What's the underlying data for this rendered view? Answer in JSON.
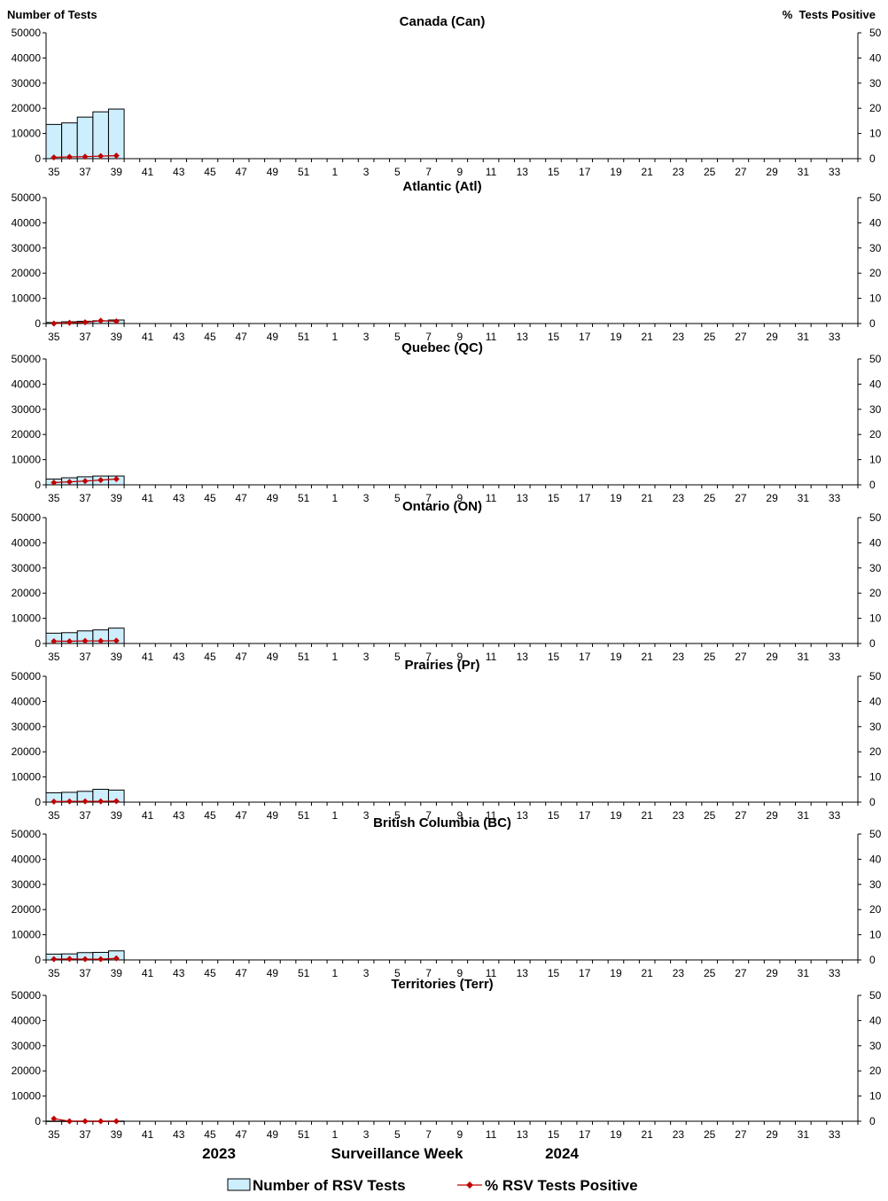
{
  "labels": {
    "left_axis_title": "Number of Tests",
    "right_axis_title": "%  Tests Positive",
    "year_left": "2023",
    "x_axis_title": "Surveillance Week",
    "year_right": "2024"
  },
  "legend": {
    "bars": "Number of RSV Tests",
    "line": "% RSV Tests Positive"
  },
  "colors": {
    "bar_fill": "#cdeefd",
    "bar_stroke": "#000000",
    "line": "#c00000",
    "marker": "#c00000"
  },
  "chart_data": [
    {
      "type": "bar",
      "title": "Canada (Can)",
      "x_tick_labels": [
        "35",
        "37",
        "39",
        "41",
        "43",
        "45",
        "47",
        "49",
        "51",
        "1",
        "3",
        "5",
        "7",
        "9",
        "11",
        "13",
        "15",
        "17",
        "19",
        "21",
        "23",
        "25",
        "27",
        "29",
        "31",
        "33"
      ],
      "categories": [
        "35",
        "36",
        "37",
        "38",
        "39"
      ],
      "series": [
        {
          "name": "Number of RSV Tests",
          "axis": "left",
          "type": "bar",
          "values": [
            13600,
            14200,
            16500,
            18600,
            19700
          ]
        },
        {
          "name": "% RSV Tests Positive",
          "axis": "right",
          "type": "line",
          "values": [
            0.5,
            0.7,
            0.8,
            1.0,
            1.2
          ]
        }
      ],
      "ylim_left": [
        0,
        50000
      ],
      "y_ticks_left": [
        0,
        10000,
        20000,
        30000,
        40000,
        50000
      ],
      "ylim_right": [
        0,
        50
      ],
      "y_ticks_right": [
        0,
        10,
        20,
        30,
        40,
        50
      ]
    },
    {
      "type": "bar",
      "title": "Atlantic (Atl)",
      "x_tick_labels": [
        "35",
        "37",
        "39",
        "41",
        "43",
        "45",
        "47",
        "49",
        "51",
        "1",
        "3",
        "5",
        "7",
        "9",
        "11",
        "13",
        "15",
        "17",
        "19",
        "21",
        "23",
        "25",
        "27",
        "29",
        "31",
        "33"
      ],
      "categories": [
        "35",
        "36",
        "37",
        "38",
        "39"
      ],
      "series": [
        {
          "name": "Number of RSV Tests",
          "axis": "left",
          "type": "bar",
          "values": [
            400,
            700,
            900,
            1100,
            1400
          ]
        },
        {
          "name": "% RSV Tests Positive",
          "axis": "right",
          "type": "line",
          "values": [
            0.0,
            0.3,
            0.5,
            1.1,
            0.9
          ]
        }
      ],
      "ylim_left": [
        0,
        50000
      ],
      "y_ticks_left": [
        0,
        10000,
        20000,
        30000,
        40000,
        50000
      ],
      "ylim_right": [
        0,
        50
      ],
      "y_ticks_right": [
        0,
        10,
        20,
        30,
        40,
        50
      ]
    },
    {
      "type": "bar",
      "title": "Quebec (QC)",
      "x_tick_labels": [
        "35",
        "37",
        "39",
        "41",
        "43",
        "45",
        "47",
        "49",
        "51",
        "1",
        "3",
        "5",
        "7",
        "9",
        "11",
        "13",
        "15",
        "17",
        "19",
        "21",
        "23",
        "25",
        "27",
        "29",
        "31",
        "33"
      ],
      "categories": [
        "35",
        "36",
        "37",
        "38",
        "39"
      ],
      "series": [
        {
          "name": "Number of RSV Tests",
          "axis": "left",
          "type": "bar",
          "values": [
            2300,
            2800,
            3200,
            3500,
            3500
          ]
        },
        {
          "name": "% RSV Tests Positive",
          "axis": "right",
          "type": "line",
          "values": [
            0.9,
            1.2,
            1.5,
            1.9,
            2.3
          ]
        }
      ],
      "ylim_left": [
        0,
        50000
      ],
      "y_ticks_left": [
        0,
        10000,
        20000,
        30000,
        40000,
        50000
      ],
      "ylim_right": [
        0,
        50
      ],
      "y_ticks_right": [
        0,
        10,
        20,
        30,
        40,
        50
      ]
    },
    {
      "type": "bar",
      "title": "Ontario (ON)",
      "x_tick_labels": [
        "35",
        "37",
        "39",
        "41",
        "43",
        "45",
        "47",
        "49",
        "51",
        "1",
        "3",
        "5",
        "7",
        "9",
        "11",
        "13",
        "15",
        "17",
        "19",
        "21",
        "23",
        "25",
        "27",
        "29",
        "31",
        "33"
      ],
      "categories": [
        "35",
        "36",
        "37",
        "38",
        "39"
      ],
      "series": [
        {
          "name": "Number of RSV Tests",
          "axis": "left",
          "type": "bar",
          "values": [
            4100,
            4300,
            5000,
            5400,
            6100
          ]
        },
        {
          "name": "% RSV Tests Positive",
          "axis": "right",
          "type": "line",
          "values": [
            0.9,
            0.9,
            1.0,
            1.0,
            1.1
          ]
        }
      ],
      "ylim_left": [
        0,
        50000
      ],
      "y_ticks_left": [
        0,
        10000,
        20000,
        30000,
        40000,
        50000
      ],
      "ylim_right": [
        0,
        50
      ],
      "y_ticks_right": [
        0,
        10,
        20,
        30,
        40,
        50
      ]
    },
    {
      "type": "bar",
      "title": "Prairies (Pr)",
      "x_tick_labels": [
        "35",
        "37",
        "39",
        "41",
        "43",
        "45",
        "47",
        "49",
        "51",
        "1",
        "3",
        "5",
        "7",
        "9",
        "11",
        "13",
        "15",
        "17",
        "19",
        "21",
        "23",
        "25",
        "27",
        "29",
        "31",
        "33"
      ],
      "categories": [
        "35",
        "36",
        "37",
        "38",
        "39"
      ],
      "series": [
        {
          "name": "Number of RSV Tests",
          "axis": "left",
          "type": "bar",
          "values": [
            3700,
            3900,
            4300,
            5100,
            4800
          ]
        },
        {
          "name": "% RSV Tests Positive",
          "axis": "right",
          "type": "line",
          "values": [
            0.2,
            0.3,
            0.3,
            0.3,
            0.4
          ]
        }
      ],
      "ylim_left": [
        0,
        50000
      ],
      "y_ticks_left": [
        0,
        10000,
        20000,
        30000,
        40000,
        50000
      ],
      "ylim_right": [
        0,
        50
      ],
      "y_ticks_right": [
        0,
        10,
        20,
        30,
        40,
        50
      ]
    },
    {
      "type": "bar",
      "title": "British Columbia (BC)",
      "x_tick_labels": [
        "35",
        "37",
        "39",
        "41",
        "43",
        "45",
        "47",
        "49",
        "51",
        "1",
        "3",
        "5",
        "7",
        "9",
        "11",
        "13",
        "15",
        "17",
        "19",
        "21",
        "23",
        "25",
        "27",
        "29",
        "31",
        "33"
      ],
      "categories": [
        "35",
        "36",
        "37",
        "38",
        "39"
      ],
      "series": [
        {
          "name": "Number of RSV Tests",
          "axis": "left",
          "type": "bar",
          "values": [
            2300,
            2400,
            2900,
            3000,
            3600
          ]
        },
        {
          "name": "% RSV Tests Positive",
          "axis": "right",
          "type": "line",
          "values": [
            0.3,
            0.4,
            0.3,
            0.3,
            0.6
          ]
        }
      ],
      "ylim_left": [
        0,
        50000
      ],
      "y_ticks_left": [
        0,
        10000,
        20000,
        30000,
        40000,
        50000
      ],
      "ylim_right": [
        0,
        50
      ],
      "y_ticks_right": [
        0,
        10,
        20,
        30,
        40,
        50
      ]
    },
    {
      "type": "bar",
      "title": "Territories (Terr)",
      "x_tick_labels": [
        "35",
        "37",
        "39",
        "41",
        "43",
        "45",
        "47",
        "49",
        "51",
        "1",
        "3",
        "5",
        "7",
        "9",
        "11",
        "13",
        "15",
        "17",
        "19",
        "21",
        "23",
        "25",
        "27",
        "29",
        "31",
        "33"
      ],
      "categories": [
        "35",
        "36",
        "37",
        "38",
        "39"
      ],
      "series": [
        {
          "name": "Number of RSV Tests",
          "axis": "left",
          "type": "bar",
          "values": [
            60,
            60,
            60,
            60,
            60
          ]
        },
        {
          "name": "% RSV Tests Positive",
          "axis": "right",
          "type": "line",
          "values": [
            1.0,
            0.0,
            0.0,
            0.0,
            0.0
          ]
        }
      ],
      "ylim_left": [
        0,
        50000
      ],
      "y_ticks_left": [
        0,
        10000,
        20000,
        30000,
        40000,
        50000
      ],
      "ylim_right": [
        0,
        50
      ],
      "y_ticks_right": [
        0,
        10,
        20,
        30,
        40,
        50
      ]
    }
  ]
}
